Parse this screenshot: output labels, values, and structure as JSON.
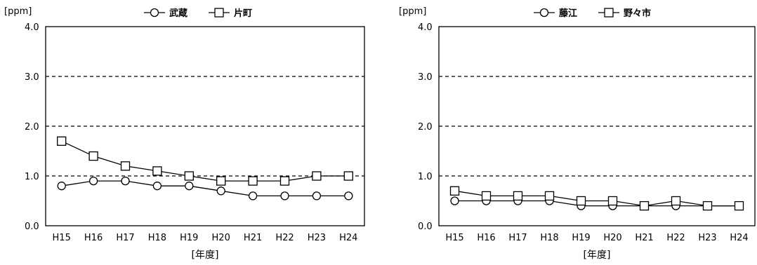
{
  "chart_data": [
    {
      "type": "line",
      "unit_label": "[ppm]",
      "xlabel": "[年度]",
      "categories": [
        "H15",
        "H16",
        "H17",
        "H18",
        "H19",
        "H20",
        "H21",
        "H22",
        "H23",
        "H24"
      ],
      "ylim": [
        0,
        4.0
      ],
      "yticks": [
        "0.0",
        "1.0",
        "2.0",
        "3.0",
        "4.0"
      ],
      "grid": true,
      "legend_position": "top",
      "series": [
        {
          "name": "武蔵",
          "marker": "circle",
          "values": [
            0.8,
            0.9,
            0.9,
            0.8,
            0.8,
            0.7,
            0.6,
            0.6,
            0.6,
            0.6
          ]
        },
        {
          "name": "片町",
          "marker": "square",
          "values": [
            1.7,
            1.4,
            1.2,
            1.1,
            1.0,
            0.9,
            0.9,
            0.9,
            1.0,
            1.0
          ]
        }
      ]
    },
    {
      "type": "line",
      "unit_label": "[ppm]",
      "xlabel": "[年度]",
      "categories": [
        "H15",
        "H16",
        "H17",
        "H18",
        "H19",
        "H20",
        "H21",
        "H22",
        "H23",
        "H24"
      ],
      "ylim": [
        0,
        4.0
      ],
      "yticks": [
        "0.0",
        "1.0",
        "2.0",
        "3.0",
        "4.0"
      ],
      "grid": true,
      "legend_position": "top",
      "series": [
        {
          "name": "藤江",
          "marker": "circle",
          "values": [
            0.5,
            0.5,
            0.5,
            0.5,
            0.4,
            0.4,
            0.4,
            0.4,
            0.4,
            0.4
          ]
        },
        {
          "name": "野々市",
          "marker": "square",
          "values": [
            0.7,
            0.6,
            0.6,
            0.6,
            0.5,
            0.5,
            0.4,
            0.5,
            0.4,
            0.4
          ]
        }
      ]
    }
  ]
}
